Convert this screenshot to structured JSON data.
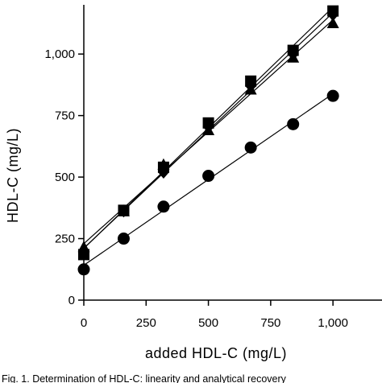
{
  "chart_data": {
    "type": "line",
    "title": "",
    "xlabel": "added HDL-C (mg/L)",
    "ylabel": "HDL-C (mg/L)",
    "xlim": [
      0,
      1200
    ],
    "ylim": [
      0,
      1200
    ],
    "x_ticks": [
      0,
      250,
      500,
      750,
      1000
    ],
    "x_tick_labels": [
      "0",
      "250",
      "500",
      "750",
      "1,000"
    ],
    "y_ticks": [
      0,
      250,
      500,
      750,
      1000
    ],
    "y_tick_labels": [
      "0",
      "250",
      "500",
      "750",
      "1,000"
    ],
    "grid": false,
    "legend": "none",
    "series": [
      {
        "marker": "square",
        "x": [
          0,
          160,
          320,
          500,
          670,
          840,
          1000
        ],
        "y": [
          185,
          365,
          540,
          720,
          890,
          1015,
          1175
        ]
      },
      {
        "marker": "triangle",
        "x": [
          0,
          160,
          320,
          500,
          670,
          840,
          1000
        ],
        "y": [
          215,
          360,
          550,
          690,
          855,
          985,
          1125
        ]
      },
      {
        "marker": "diamond",
        "x": [
          0,
          160,
          320,
          500,
          670,
          840,
          1000
        ],
        "y": [
          200,
          362,
          520,
          705,
          870,
          1000,
          1160
        ]
      },
      {
        "marker": "circle",
        "x": [
          0,
          160,
          320,
          500,
          670,
          840,
          1000
        ],
        "y": [
          125,
          250,
          380,
          505,
          620,
          715,
          830
        ]
      }
    ],
    "caption": "Fig. 1. Determination of HDL-C: linearity and analytical recovery"
  }
}
